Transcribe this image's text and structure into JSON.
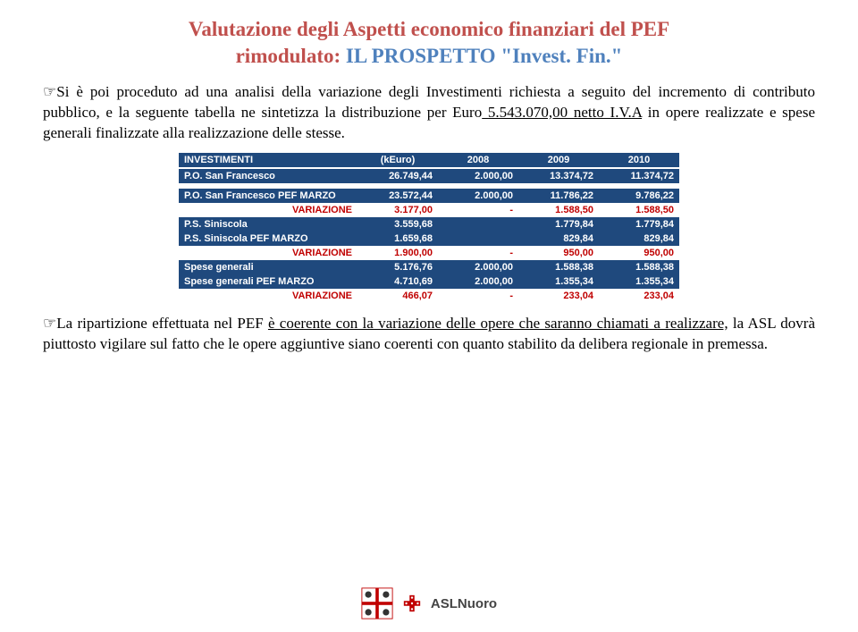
{
  "title": {
    "line1_part1": "Valutazione degli Aspetti economico finanziari del PEF",
    "line2_part1": "rimodulato:",
    "line2_part2": " IL PROSPETTO \"Invest. Fin.\""
  },
  "para1": {
    "hand": "☞",
    "t1": "Si è poi proceduto ad una analisi della variazione degli Investimenti richiesta a seguito del incremento di contributo pubblico, e la seguente tabella ne sintetizza la distribuzione per Euro",
    "u1": " 5.543.070,00 netto I.V.A",
    "t2": " in opere realizzate e spese generali finalizzate alla realizzazione delle stesse."
  },
  "table": {
    "header": {
      "c1": "INVESTIMENTI",
      "c2": "(kEuro)",
      "c3": "2008",
      "c4": "2009",
      "c5": "2010"
    },
    "rows": [
      {
        "type": "blue",
        "c1": "P.O. San Francesco",
        "c2": "26.749,44",
        "c3": "2.000,00",
        "c4": "13.374,72",
        "c5": "11.374,72"
      },
      {
        "type": "spacer"
      },
      {
        "type": "blue",
        "c1": "P.O. San Francesco PEF MARZO",
        "c2": "23.572,44",
        "c3": "2.000,00",
        "c4": "11.786,22",
        "c5": "9.786,22"
      },
      {
        "type": "var",
        "c1": "VARIAZIONE",
        "c2": "3.177,00",
        "c3": "-",
        "c4": "1.588,50",
        "c5": "1.588,50"
      },
      {
        "type": "blue",
        "c1": "P.S. Siniscola",
        "c2": "3.559,68",
        "c3": "",
        "c4": "1.779,84",
        "c5": "1.779,84"
      },
      {
        "type": "blue",
        "c1": "P.S. Siniscola PEF MARZO",
        "c2": "1.659,68",
        "c3": "",
        "c4": "829,84",
        "c5": "829,84"
      },
      {
        "type": "var",
        "c1": "VARIAZIONE",
        "c2": "1.900,00",
        "c3": "-",
        "c4": "950,00",
        "c5": "950,00"
      },
      {
        "type": "blue",
        "c1": "Spese generali",
        "c2": "5.176,76",
        "c3": "2.000,00",
        "c4": "1.588,38",
        "c5": "1.588,38"
      },
      {
        "type": "blue",
        "c1": "Spese generali PEF MARZO",
        "c2": "4.710,69",
        "c3": "2.000,00",
        "c4": "1.355,34",
        "c5": "1.355,34"
      },
      {
        "type": "var",
        "c1": "VARIAZIONE",
        "c2": "466,07",
        "c3": "-",
        "c4": "233,04",
        "c5": "233,04"
      }
    ],
    "colors": {
      "header_bg": "#1f497d",
      "header_fg": "#ffffff",
      "var_fg": "#c00000"
    }
  },
  "para2": {
    "hand": "☞",
    "t1": "La ripartizione effettuata nel PEF ",
    "u1": "è coerente con la variazione delle opere che saranno chiamati a realizzare,",
    "t2": " la ASL dovrà piuttosto vigilare sul fatto che le opere aggiuntive siano coerenti con quanto stabilito da delibera regionale in premessa."
  },
  "footer": {
    "brand": "ASLNuoro"
  }
}
